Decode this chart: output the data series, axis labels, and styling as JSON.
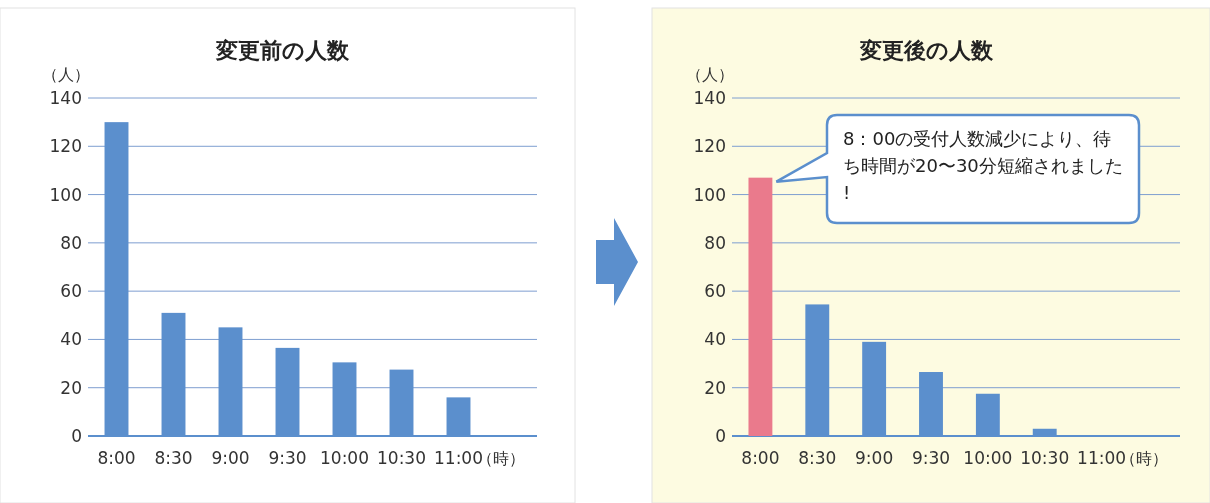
{
  "chart_data": [
    {
      "type": "bar",
      "title": "変更前の人数",
      "ylabel": "（人）",
      "xlabel": "（時）",
      "categories": [
        "8:00",
        "8:30",
        "9:00",
        "9:30",
        "10:00",
        "10:30",
        "11:00"
      ],
      "values": [
        130,
        51,
        45,
        36.5,
        30.5,
        27.5,
        16
      ],
      "color": "#5b8fcd",
      "ylim": [
        0,
        140
      ],
      "yticks": [
        0,
        20,
        40,
        60,
        80,
        100,
        120,
        140
      ],
      "grid": "y"
    },
    {
      "type": "bar",
      "title": "変更後の人数",
      "ylabel": "（人）",
      "xlabel": "（時）",
      "categories": [
        "8:00",
        "8:30",
        "9:00",
        "9:30",
        "10:00",
        "10:30",
        "11:00"
      ],
      "values": [
        107,
        54.5,
        39,
        26.5,
        17.5,
        3,
        0
      ],
      "colors": [
        "#ea7a8c",
        "#5b8fcd",
        "#5b8fcd",
        "#5b8fcd",
        "#5b8fcd",
        "#5b8fcd",
        "#5b8fcd"
      ],
      "ylim": [
        0,
        140
      ],
      "yticks": [
        0,
        20,
        40,
        60,
        80,
        100,
        120,
        140
      ],
      "grid": "y",
      "annotations": [
        "8：00の受付人数減少により、待ち時間が20〜30分短縮されました!"
      ]
    }
  ]
}
